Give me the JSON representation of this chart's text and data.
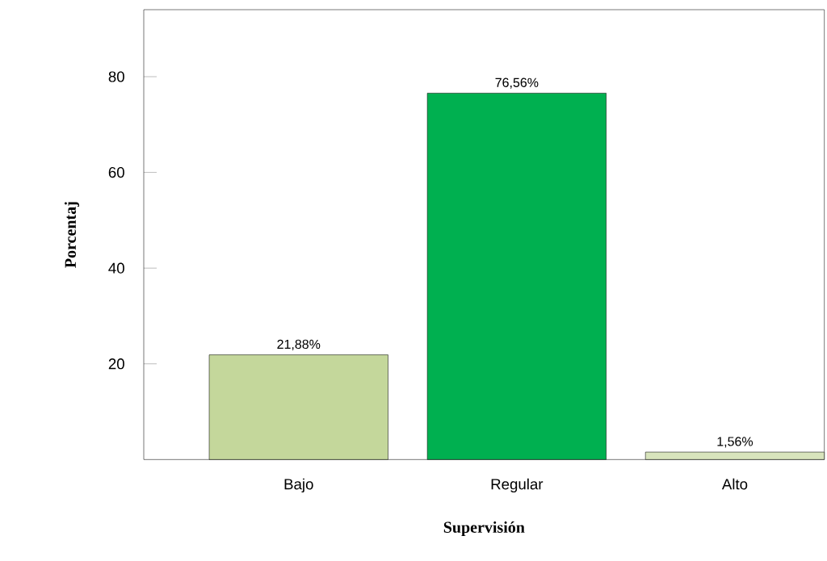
{
  "chart_data": {
    "type": "bar",
    "xlabel": "Supervisión",
    "ylabel": "Porcentaj",
    "categories": [
      "Bajo",
      "Regular",
      "Alto"
    ],
    "values": [
      21.88,
      76.56,
      1.56
    ],
    "colors": [
      "#c4d79b",
      "#00b050",
      "#d8e4bc"
    ],
    "value_labels": [
      "21,88%",
      "76,56%",
      "1,56%"
    ],
    "ylim": [
      0,
      94
    ],
    "yticks": [
      20,
      40,
      60,
      80
    ]
  }
}
